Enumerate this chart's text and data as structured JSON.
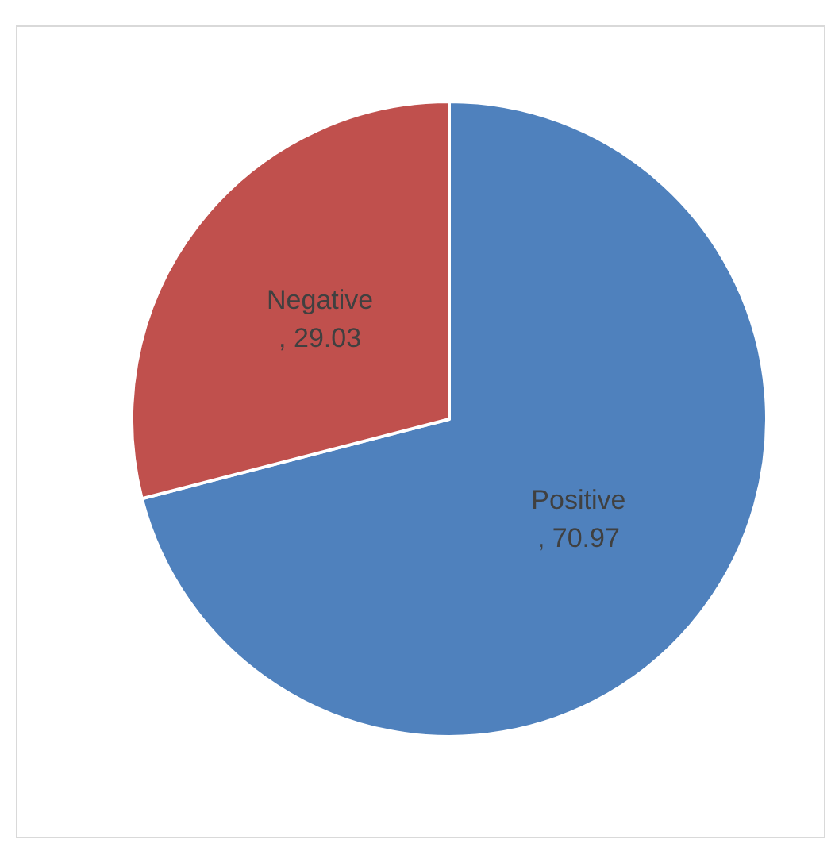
{
  "chart_data": {
    "type": "pie",
    "categories": [
      "Positive",
      "Negative"
    ],
    "values": [
      70.97,
      29.03
    ],
    "value_labels": [
      ", 70.97",
      ", 29.03"
    ],
    "colors": [
      "#4f81bd",
      "#c0504d"
    ],
    "legend": false
  }
}
